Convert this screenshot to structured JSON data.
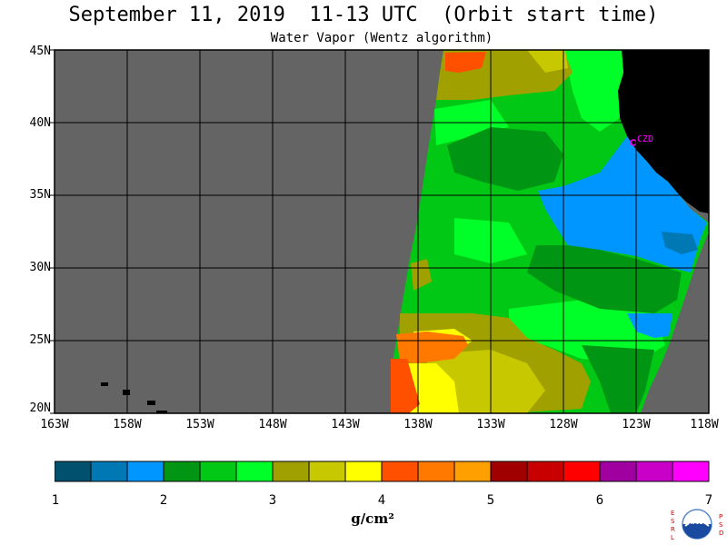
{
  "title": "September 11, 2019  11-13 UTC  (Orbit start time)",
  "subtitle": "Water Vapor (Wentz algorithm)",
  "map": {
    "lat_labels": [
      "45N",
      "40N",
      "35N",
      "30N",
      "25N",
      "20N"
    ],
    "lon_labels": [
      "163W",
      "158W",
      "153W",
      "148W",
      "143W",
      "138W",
      "133W",
      "128W",
      "123W",
      "118W"
    ],
    "station_label": "CZD",
    "colors": {
      "no_data": "#646464",
      "land": "#000000",
      "station": "#ff00ff",
      "grid": "#000000"
    }
  },
  "colorbar": {
    "labels": [
      "1",
      "2",
      "3",
      "4",
      "5",
      "6",
      "7"
    ],
    "unit": "g/cm²",
    "colors": [
      "#00506e",
      "#0078b4",
      "#0096ff",
      "#009614",
      "#00c814",
      "#00ff28",
      "#a0a000",
      "#c8c800",
      "#ffff00",
      "#ff5000",
      "#ff7800",
      "#ffa000",
      "#a00000",
      "#c80000",
      "#ff0000",
      "#a000a0",
      "#c800c8",
      "#ff00ff"
    ]
  },
  "logo": {
    "left_text": "ESRL",
    "right_text": "PSD",
    "center_text": "NOAA"
  }
}
